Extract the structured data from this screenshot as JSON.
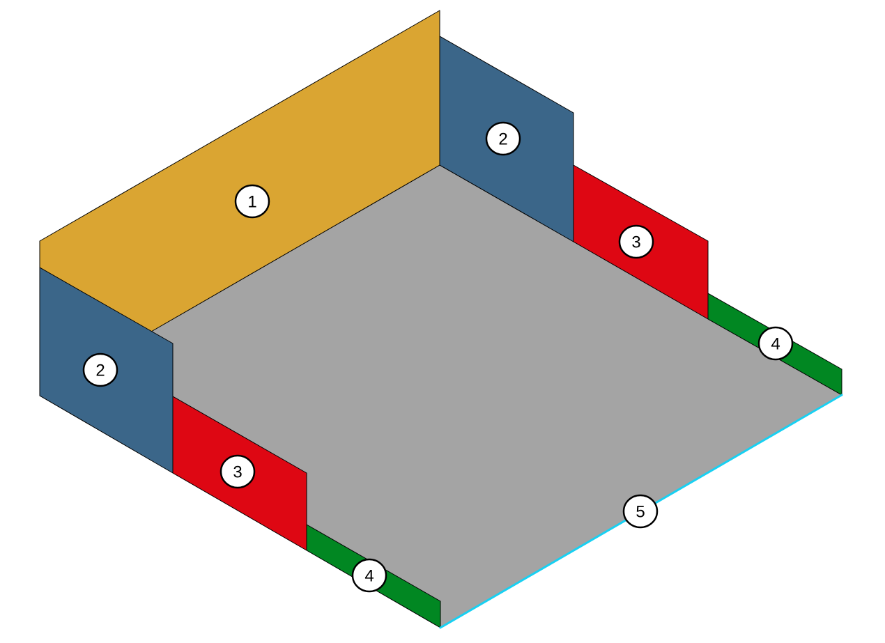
{
  "diagram": {
    "colors": {
      "panel_1": "#DAA532",
      "panel_2": "#3B6689",
      "panel_3": "#DE0713",
      "panel_4": "#018722",
      "floor": "#A4A4A4",
      "edge_5": "#18D0F2",
      "outline": "#000000",
      "callout_fill": "#FFFFFF"
    },
    "callouts": [
      {
        "label": "1",
        "part": "back-wall"
      },
      {
        "label": "2",
        "part": "left-side-upper-panel"
      },
      {
        "label": "2",
        "part": "right-side-upper-panel"
      },
      {
        "label": "3",
        "part": "left-side-middle-panel"
      },
      {
        "label": "3",
        "part": "right-side-middle-panel"
      },
      {
        "label": "4",
        "part": "left-side-lower-strip"
      },
      {
        "label": "4",
        "part": "right-side-lower-strip"
      },
      {
        "label": "5",
        "part": "front-edge"
      }
    ]
  }
}
